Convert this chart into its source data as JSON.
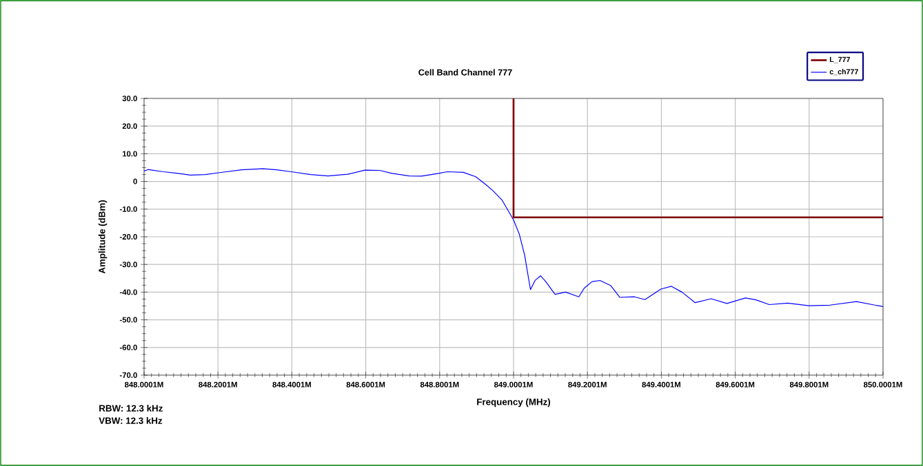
{
  "chart_data": {
    "type": "line",
    "title": "Cell Band Channel 777",
    "xlabel": "Frequency (MHz)",
    "ylabel": "Amplitude (dBm)",
    "annotations": [
      "RBW: 12.3 kHz",
      "VBW: 12.3 kHz"
    ],
    "xlim": [
      848.0001,
      850.0001
    ],
    "ylim": [
      -70,
      30
    ],
    "xticks": [
      {
        "value": 848.0001,
        "label": "848.0001M"
      },
      {
        "value": 848.2001,
        "label": "848.2001M"
      },
      {
        "value": 848.4001,
        "label": "848.4001M"
      },
      {
        "value": 848.6001,
        "label": "848.6001M"
      },
      {
        "value": 848.8001,
        "label": "848.8001M"
      },
      {
        "value": 849.0001,
        "label": "849.0001M"
      },
      {
        "value": 849.2001,
        "label": "849.2001M"
      },
      {
        "value": 849.4001,
        "label": "849.4001M"
      },
      {
        "value": 849.6001,
        "label": "849.6001M"
      },
      {
        "value": 849.8001,
        "label": "849.8001M"
      },
      {
        "value": 850.0001,
        "label": "850.0001M"
      }
    ],
    "yticks": [
      {
        "value": -70,
        "label": "-70.0"
      },
      {
        "value": -60,
        "label": "-60.0"
      },
      {
        "value": -50,
        "label": "-50.0"
      },
      {
        "value": -40,
        "label": "-40.0"
      },
      {
        "value": -30,
        "label": "-30.0"
      },
      {
        "value": -20,
        "label": "-20.0"
      },
      {
        "value": -10,
        "label": "-10.0"
      },
      0,
      {
        "value": 10,
        "label": "10.0"
      },
      {
        "value": 20,
        "label": "20.0"
      },
      {
        "value": 30,
        "label": "30.0"
      }
    ],
    "grid": true,
    "legend": "top right",
    "series": [
      {
        "name": "L_777",
        "color": "#800000",
        "x": [
          849.0001,
          849.0001,
          850.0001
        ],
        "values": [
          30,
          -13,
          -13
        ]
      },
      {
        "name": "c_ch777",
        "color": "#0000ff",
        "x": [
          848.0001,
          848.0121,
          848.052,
          848.092,
          848.1252,
          848.1652,
          848.2051,
          848.265,
          848.3216,
          848.3582,
          848.3981,
          848.4514,
          848.498,
          848.5512,
          848.5978,
          848.6378,
          848.671,
          848.7176,
          848.7509,
          848.7975,
          848.8208,
          848.8641,
          848.8978,
          848.9264,
          848.944,
          848.9693,
          849.0001,
          849.0158,
          849.0302,
          849.0459,
          849.0588,
          849.0731,
          849.0874,
          849.1124,
          849.1411,
          849.1768,
          849.1912,
          849.2126,
          849.2341,
          849.2627,
          849.2878,
          849.3271,
          849.3558,
          849.3987,
          849.4273,
          849.4559,
          849.4917,
          849.5346,
          849.5776,
          849.6276,
          849.6563,
          849.6921,
          849.7422,
          849.7994,
          849.8566,
          849.9282,
          849.9782,
          850.0001
        ],
        "values": [
          3.8,
          4.3,
          3.5,
          2.9,
          2.3,
          2.5,
          3.2,
          4.2,
          4.6,
          4.2,
          3.5,
          2.5,
          2.0,
          2.6,
          4.1,
          4.0,
          2.9,
          2.0,
          1.9,
          2.9,
          3.5,
          3.3,
          1.7,
          -1.3,
          -3.3,
          -6.8,
          -13.9,
          -19.1,
          -26.7,
          -39.1,
          -35.7,
          -34.1,
          -36.2,
          -40.8,
          -40.0,
          -41.7,
          -38.6,
          -36.2,
          -35.8,
          -37.6,
          -41.9,
          -41.7,
          -42.7,
          -38.9,
          -37.9,
          -40.0,
          -43.8,
          -42.4,
          -44.1,
          -42.1,
          -42.8,
          -44.5,
          -44.0,
          -44.9,
          -44.7,
          -43.4,
          -44.7,
          -45.2
        ]
      }
    ]
  }
}
